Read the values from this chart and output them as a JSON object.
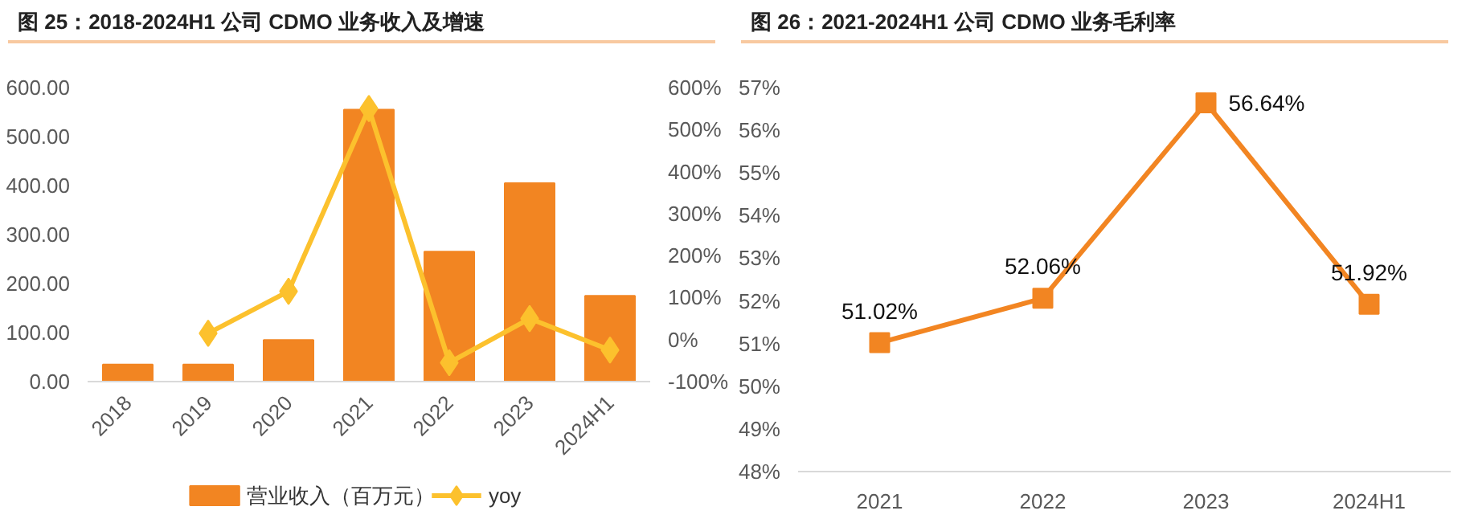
{
  "chart_data": [
    {
      "type": "bar",
      "title": "图 25：2018-2024H1 公司 CDMO 业务收入及增速",
      "categories": [
        "2018",
        "2019",
        "2020",
        "2021",
        "2022",
        "2023",
        "2024H1"
      ],
      "series": [
        {
          "name": "营业收入（百万元）",
          "type": "bar",
          "color": "#f28522",
          "values": [
            35,
            35,
            85,
            555,
            265,
            405,
            175
          ]
        },
        {
          "name": "yoy",
          "type": "line",
          "axis": "y2",
          "marker": "diamond",
          "color": "#fcc12d",
          "values": [
            null,
            15,
            115,
            550,
            -55,
            50,
            -25
          ]
        }
      ],
      "ylim": [
        0,
        600
      ],
      "yticks": [
        {
          "value": 0,
          "label": "0.00"
        },
        {
          "value": 100,
          "label": "100.00"
        },
        {
          "value": 200,
          "label": "200.00"
        },
        {
          "value": 300,
          "label": "300.00"
        },
        {
          "value": 400,
          "label": "400.00"
        },
        {
          "value": 500,
          "label": "500.00"
        },
        {
          "value": 600,
          "label": "600.00"
        }
      ],
      "y2lim": [
        -100,
        600
      ],
      "y2ticks": [
        {
          "value": -100,
          "label": "-100%"
        },
        {
          "value": 0,
          "label": "0%"
        },
        {
          "value": 100,
          "label": "100%"
        },
        {
          "value": 200,
          "label": "200%"
        },
        {
          "value": 300,
          "label": "300%"
        },
        {
          "value": 400,
          "label": "400%"
        },
        {
          "value": 500,
          "label": "500%"
        },
        {
          "value": 600,
          "label": "600%"
        }
      ],
      "grid": false,
      "legend": "bottom"
    },
    {
      "type": "line",
      "title": "图 26：2021-2024H1 公司 CDMO 业务毛利率",
      "categories": [
        "2021",
        "2022",
        "2023",
        "2024H1"
      ],
      "series": [
        {
          "color": "#f28522",
          "values": [
            51.02,
            52.06,
            56.64,
            51.92
          ],
          "value_labels": [
            "51.02%",
            "52.06%",
            "56.64%",
            "51.92%"
          ]
        }
      ],
      "ylim": [
        48,
        57
      ],
      "yticks": [
        {
          "value": 48,
          "label": "48%"
        },
        {
          "value": 49,
          "label": "49%"
        },
        {
          "value": 50,
          "label": "50%"
        },
        {
          "value": 51,
          "label": "51%"
        },
        {
          "value": 52,
          "label": "52%"
        },
        {
          "value": 53,
          "label": "53%"
        },
        {
          "value": 54,
          "label": "54%"
        },
        {
          "value": 55,
          "label": "55%"
        },
        {
          "value": 56,
          "label": "56%"
        },
        {
          "value": 57,
          "label": "57%"
        }
      ],
      "marker": "square",
      "line_style": "solid",
      "grid": false
    }
  ]
}
